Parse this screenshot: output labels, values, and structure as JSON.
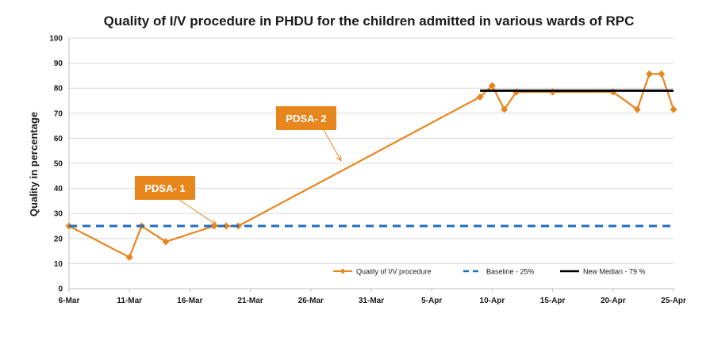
{
  "chart_data": {
    "type": "line",
    "title": "Quality of I/V procedure in PHDU for the children admitted in various wards of RPC",
    "ylabel": "Quality in percentage",
    "xlabel": "",
    "ylim": [
      0,
      100
    ],
    "y_ticks": [
      0,
      10,
      20,
      30,
      40,
      50,
      60,
      70,
      80,
      90,
      100
    ],
    "x_ticks": [
      {
        "label": "6-Mar",
        "day": 0
      },
      {
        "label": "11-Mar",
        "day": 5
      },
      {
        "label": "16-Mar",
        "day": 10
      },
      {
        "label": "21-Mar",
        "day": 15
      },
      {
        "label": "26-Mar",
        "day": 20
      },
      {
        "label": "31-Mar",
        "day": 25
      },
      {
        "label": "5-Apr",
        "day": 30
      },
      {
        "label": "10-Apr",
        "day": 35
      },
      {
        "label": "15-Apr",
        "day": 40
      },
      {
        "label": "20-Apr",
        "day": 45
      },
      {
        "label": "25-Apr",
        "day": 50
      }
    ],
    "xlim": [
      0,
      50
    ],
    "grid": true,
    "legend_position": "bottom-right",
    "series": [
      {
        "name": "Quality of I/V procedure",
        "style": "line-diamond",
        "color": "#E8861E",
        "points": [
          {
            "day": 0,
            "y": 25
          },
          {
            "day": 5,
            "y": 12.5
          },
          {
            "day": 6,
            "y": 25
          },
          {
            "day": 8,
            "y": 18.7
          },
          {
            "day": 12,
            "y": 25
          },
          {
            "day": 13,
            "y": 25
          },
          {
            "day": 14,
            "y": 25
          },
          {
            "day": 34,
            "y": 76.5
          },
          {
            "day": 35,
            "y": 81
          },
          {
            "day": 36,
            "y": 71.5
          },
          {
            "day": 37,
            "y": 78.5
          },
          {
            "day": 40,
            "y": 78.5
          },
          {
            "day": 45,
            "y": 78.5
          },
          {
            "day": 47,
            "y": 71.5
          },
          {
            "day": 48,
            "y": 85.7
          },
          {
            "day": 49,
            "y": 85.7
          },
          {
            "day": 50,
            "y": 71.5
          }
        ]
      },
      {
        "name": "Baseline - 25%",
        "style": "dashed",
        "color": "#1F6FBF",
        "points": [
          {
            "day": 0,
            "y": 25
          },
          {
            "day": 50,
            "y": 25
          }
        ]
      },
      {
        "name": "New Median - 79 %",
        "style": "solid",
        "color": "#000000",
        "points": [
          {
            "day": 34,
            "y": 79
          },
          {
            "day": 50,
            "y": 79
          }
        ]
      }
    ],
    "annotations": [
      {
        "label": "PDSA- 1",
        "target_day": 12.2,
        "target_y": 25.5,
        "color": "#E8861E"
      },
      {
        "label": "PDSA- 2",
        "target_day": 22.5,
        "target_y": 51,
        "color": "#E8861E"
      }
    ]
  }
}
